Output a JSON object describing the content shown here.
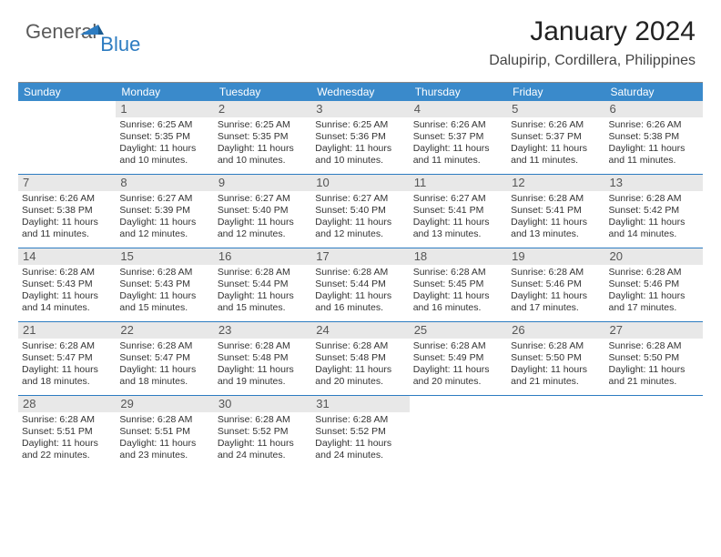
{
  "logo": {
    "part1": "General",
    "part2": "Blue"
  },
  "header": {
    "title": "January 2024",
    "location": "Dalupirip, Cordillera, Philippines"
  },
  "colors": {
    "headerBar": "#3a8acb",
    "weekRule": "#2d7cc1",
    "dayNumBg": "#e8e8e8"
  },
  "dayHeaders": [
    "Sunday",
    "Monday",
    "Tuesday",
    "Wednesday",
    "Thursday",
    "Friday",
    "Saturday"
  ],
  "weeks": [
    [
      null,
      {
        "n": "1",
        "sr": "Sunrise: 6:25 AM",
        "ss": "Sunset: 5:35 PM",
        "dl": "Daylight: 11 hours and 10 minutes."
      },
      {
        "n": "2",
        "sr": "Sunrise: 6:25 AM",
        "ss": "Sunset: 5:35 PM",
        "dl": "Daylight: 11 hours and 10 minutes."
      },
      {
        "n": "3",
        "sr": "Sunrise: 6:25 AM",
        "ss": "Sunset: 5:36 PM",
        "dl": "Daylight: 11 hours and 10 minutes."
      },
      {
        "n": "4",
        "sr": "Sunrise: 6:26 AM",
        "ss": "Sunset: 5:37 PM",
        "dl": "Daylight: 11 hours and 11 minutes."
      },
      {
        "n": "5",
        "sr": "Sunrise: 6:26 AM",
        "ss": "Sunset: 5:37 PM",
        "dl": "Daylight: 11 hours and 11 minutes."
      },
      {
        "n": "6",
        "sr": "Sunrise: 6:26 AM",
        "ss": "Sunset: 5:38 PM",
        "dl": "Daylight: 11 hours and 11 minutes."
      }
    ],
    [
      {
        "n": "7",
        "sr": "Sunrise: 6:26 AM",
        "ss": "Sunset: 5:38 PM",
        "dl": "Daylight: 11 hours and 11 minutes."
      },
      {
        "n": "8",
        "sr": "Sunrise: 6:27 AM",
        "ss": "Sunset: 5:39 PM",
        "dl": "Daylight: 11 hours and 12 minutes."
      },
      {
        "n": "9",
        "sr": "Sunrise: 6:27 AM",
        "ss": "Sunset: 5:40 PM",
        "dl": "Daylight: 11 hours and 12 minutes."
      },
      {
        "n": "10",
        "sr": "Sunrise: 6:27 AM",
        "ss": "Sunset: 5:40 PM",
        "dl": "Daylight: 11 hours and 12 minutes."
      },
      {
        "n": "11",
        "sr": "Sunrise: 6:27 AM",
        "ss": "Sunset: 5:41 PM",
        "dl": "Daylight: 11 hours and 13 minutes."
      },
      {
        "n": "12",
        "sr": "Sunrise: 6:28 AM",
        "ss": "Sunset: 5:41 PM",
        "dl": "Daylight: 11 hours and 13 minutes."
      },
      {
        "n": "13",
        "sr": "Sunrise: 6:28 AM",
        "ss": "Sunset: 5:42 PM",
        "dl": "Daylight: 11 hours and 14 minutes."
      }
    ],
    [
      {
        "n": "14",
        "sr": "Sunrise: 6:28 AM",
        "ss": "Sunset: 5:43 PM",
        "dl": "Daylight: 11 hours and 14 minutes."
      },
      {
        "n": "15",
        "sr": "Sunrise: 6:28 AM",
        "ss": "Sunset: 5:43 PM",
        "dl": "Daylight: 11 hours and 15 minutes."
      },
      {
        "n": "16",
        "sr": "Sunrise: 6:28 AM",
        "ss": "Sunset: 5:44 PM",
        "dl": "Daylight: 11 hours and 15 minutes."
      },
      {
        "n": "17",
        "sr": "Sunrise: 6:28 AM",
        "ss": "Sunset: 5:44 PM",
        "dl": "Daylight: 11 hours and 16 minutes."
      },
      {
        "n": "18",
        "sr": "Sunrise: 6:28 AM",
        "ss": "Sunset: 5:45 PM",
        "dl": "Daylight: 11 hours and 16 minutes."
      },
      {
        "n": "19",
        "sr": "Sunrise: 6:28 AM",
        "ss": "Sunset: 5:46 PM",
        "dl": "Daylight: 11 hours and 17 minutes."
      },
      {
        "n": "20",
        "sr": "Sunrise: 6:28 AM",
        "ss": "Sunset: 5:46 PM",
        "dl": "Daylight: 11 hours and 17 minutes."
      }
    ],
    [
      {
        "n": "21",
        "sr": "Sunrise: 6:28 AM",
        "ss": "Sunset: 5:47 PM",
        "dl": "Daylight: 11 hours and 18 minutes."
      },
      {
        "n": "22",
        "sr": "Sunrise: 6:28 AM",
        "ss": "Sunset: 5:47 PM",
        "dl": "Daylight: 11 hours and 18 minutes."
      },
      {
        "n": "23",
        "sr": "Sunrise: 6:28 AM",
        "ss": "Sunset: 5:48 PM",
        "dl": "Daylight: 11 hours and 19 minutes."
      },
      {
        "n": "24",
        "sr": "Sunrise: 6:28 AM",
        "ss": "Sunset: 5:48 PM",
        "dl": "Daylight: 11 hours and 20 minutes."
      },
      {
        "n": "25",
        "sr": "Sunrise: 6:28 AM",
        "ss": "Sunset: 5:49 PM",
        "dl": "Daylight: 11 hours and 20 minutes."
      },
      {
        "n": "26",
        "sr": "Sunrise: 6:28 AM",
        "ss": "Sunset: 5:50 PM",
        "dl": "Daylight: 11 hours and 21 minutes."
      },
      {
        "n": "27",
        "sr": "Sunrise: 6:28 AM",
        "ss": "Sunset: 5:50 PM",
        "dl": "Daylight: 11 hours and 21 minutes."
      }
    ],
    [
      {
        "n": "28",
        "sr": "Sunrise: 6:28 AM",
        "ss": "Sunset: 5:51 PM",
        "dl": "Daylight: 11 hours and 22 minutes."
      },
      {
        "n": "29",
        "sr": "Sunrise: 6:28 AM",
        "ss": "Sunset: 5:51 PM",
        "dl": "Daylight: 11 hours and 23 minutes."
      },
      {
        "n": "30",
        "sr": "Sunrise: 6:28 AM",
        "ss": "Sunset: 5:52 PM",
        "dl": "Daylight: 11 hours and 24 minutes."
      },
      {
        "n": "31",
        "sr": "Sunrise: 6:28 AM",
        "ss": "Sunset: 5:52 PM",
        "dl": "Daylight: 11 hours and 24 minutes."
      },
      null,
      null,
      null
    ]
  ]
}
